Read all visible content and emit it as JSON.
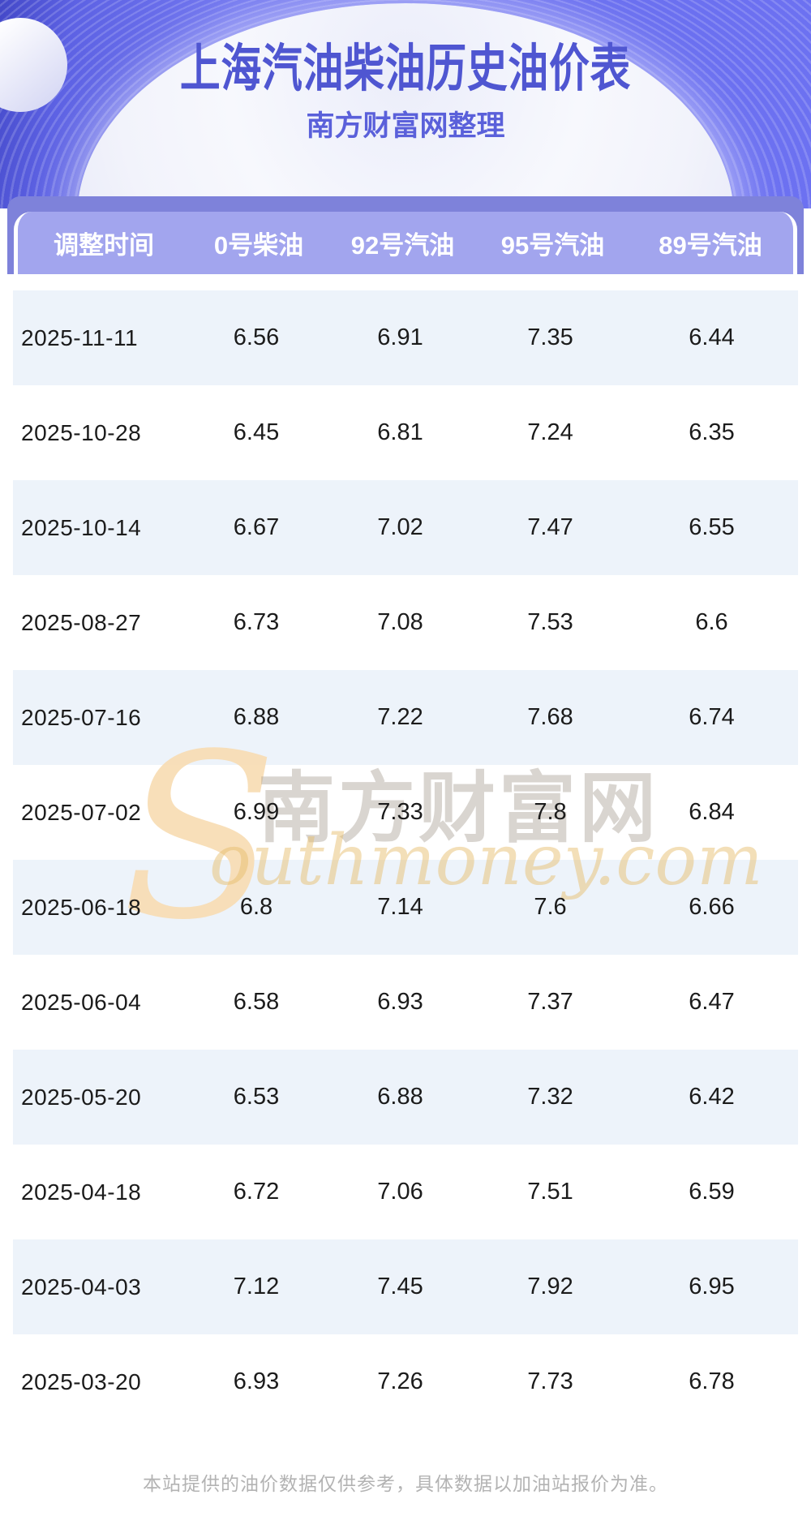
{
  "banner": {
    "title": "上海汽油柴油历史油价表",
    "subtitle": "南方财富网整理"
  },
  "table": {
    "columns": [
      "调整时间",
      "0号柴油",
      "92号汽油",
      "95号汽油",
      "89号汽油"
    ],
    "rows": [
      [
        "2025-11-11",
        "6.56",
        "6.91",
        "7.35",
        "6.44"
      ],
      [
        "2025-10-28",
        "6.45",
        "6.81",
        "7.24",
        "6.35"
      ],
      [
        "2025-10-14",
        "6.67",
        "7.02",
        "7.47",
        "6.55"
      ],
      [
        "2025-08-27",
        "6.73",
        "7.08",
        "7.53",
        "6.6"
      ],
      [
        "2025-07-16",
        "6.88",
        "7.22",
        "7.68",
        "6.74"
      ],
      [
        "2025-07-02",
        "6.99",
        "7.33",
        "7.8",
        "6.84"
      ],
      [
        "2025-06-18",
        "6.8",
        "7.14",
        "7.6",
        "6.66"
      ],
      [
        "2025-06-04",
        "6.58",
        "6.93",
        "7.37",
        "6.47"
      ],
      [
        "2025-05-20",
        "6.53",
        "6.88",
        "7.32",
        "6.42"
      ],
      [
        "2025-04-18",
        "6.72",
        "7.06",
        "7.51",
        "6.59"
      ],
      [
        "2025-04-03",
        "7.12",
        "7.45",
        "7.92",
        "6.95"
      ],
      [
        "2025-03-20",
        "6.93",
        "7.26",
        "7.73",
        "6.78"
      ]
    ]
  },
  "watermark": {
    "initial": "S",
    "site_name": "南方财富网",
    "site_domain": "outhmoney.com"
  },
  "footer": {
    "disclaimer": "本站提供的油价数据仅供参考，具体数据以加油站报价为准。"
  },
  "colors": {
    "banner_purple": "#6a6ff0",
    "banner_deep": "#4348c8",
    "header_bar": "#a2a5ee",
    "header_backdrop": "#7e82da",
    "row_alt": "#edf3fa",
    "title_indigo": "#4f56d1",
    "watermark_gold": "#f7dbb1",
    "footer_gray": "#b3b3b3"
  }
}
